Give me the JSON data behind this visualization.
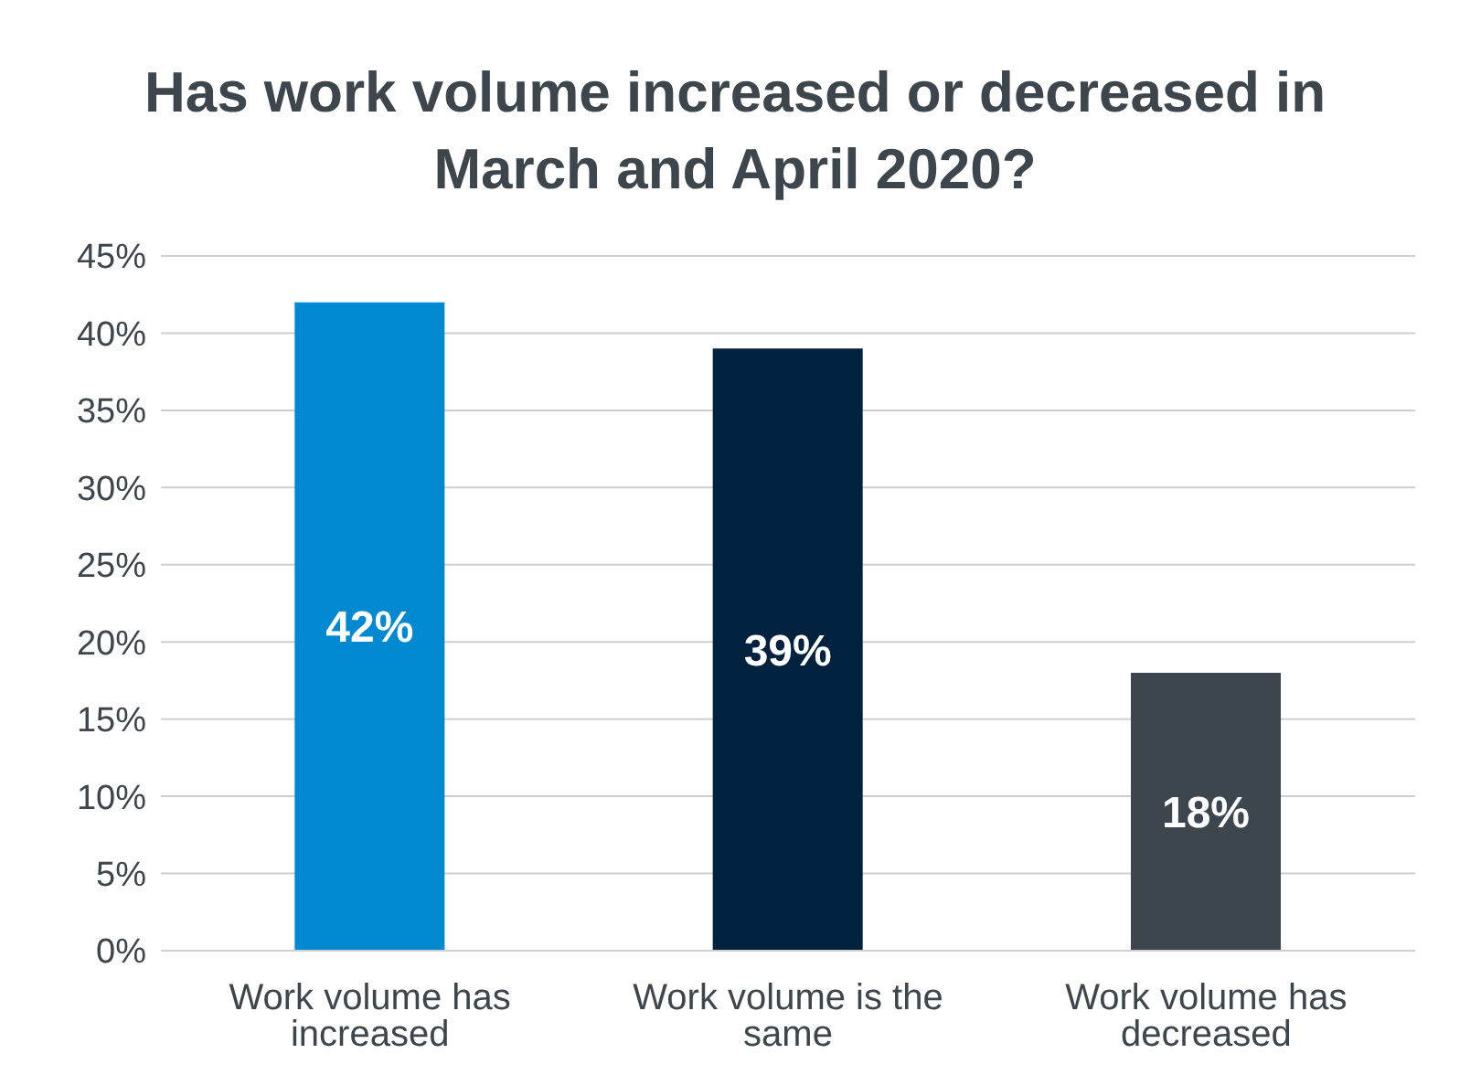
{
  "chart_data": {
    "type": "bar",
    "title": "Has work volume increased or decreased in March and April 2020?",
    "categories": [
      "Work volume has increased",
      "Work volume is the same",
      "Work volume has decreased"
    ],
    "values": [
      42,
      39,
      18
    ],
    "colors": [
      "#0088d1",
      "#00223f",
      "#3d454d"
    ],
    "value_labels": [
      "42%",
      "39%",
      "18%"
    ],
    "ylim": [
      0,
      45
    ],
    "yticks": [
      {
        "value": 0,
        "label": "0%"
      },
      {
        "value": 5,
        "label": "5%"
      },
      {
        "value": 10,
        "label": "10%"
      },
      {
        "value": 15,
        "label": "15%"
      },
      {
        "value": 20,
        "label": "20%"
      },
      {
        "value": 25,
        "label": "25%"
      },
      {
        "value": 30,
        "label": "30%"
      },
      {
        "value": 35,
        "label": "35%"
      },
      {
        "value": 40,
        "label": "40%"
      },
      {
        "value": 45,
        "label": "45%"
      }
    ],
    "grid": "y"
  }
}
